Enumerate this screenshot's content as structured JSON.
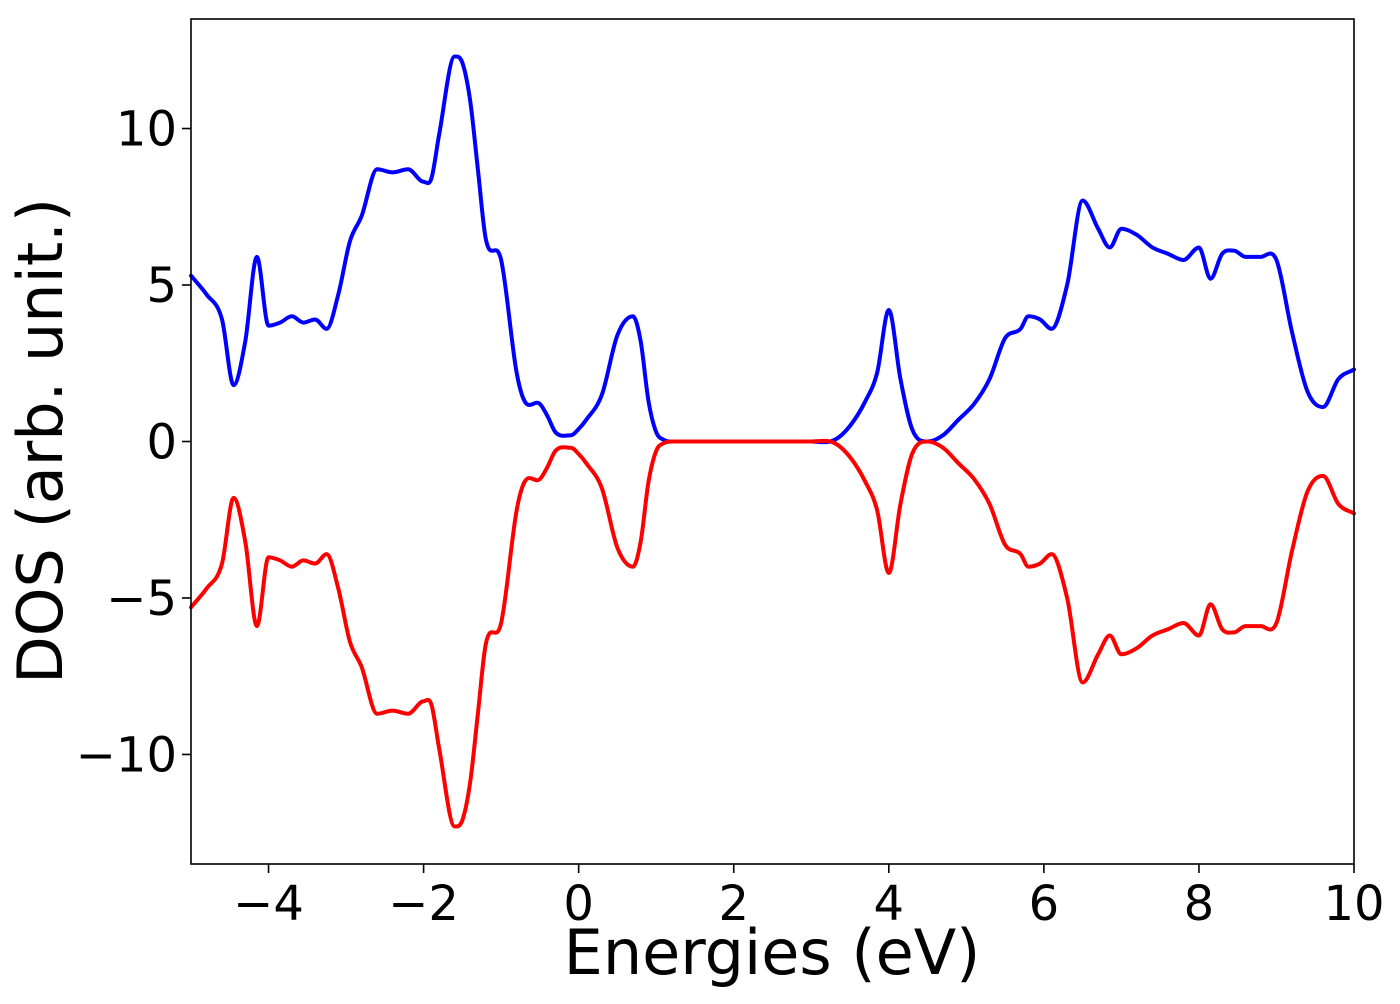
{
  "chart_data": {
    "type": "line",
    "xlabel": "Energies (eV)",
    "ylabel": "DOS (arb. unit.)",
    "xlim": [
      -5,
      10
    ],
    "ylim": [
      -13.5,
      13.5
    ],
    "grid": false,
    "xticks": [
      -4,
      -2,
      0,
      2,
      4,
      6,
      8,
      10
    ],
    "xtick_labels": [
      "−4",
      "−2",
      "0",
      "2",
      "4",
      "6",
      "8",
      "10"
    ],
    "yticks": [
      -10,
      -5,
      0,
      5,
      10
    ],
    "ytick_labels": [
      "−10",
      "−5",
      "0",
      "5",
      "10"
    ],
    "series": [
      {
        "color": "#0000ff",
        "x": [
          -5.0,
          -4.8,
          -4.6,
          -4.45,
          -4.3,
          -4.15,
          -4.0,
          -3.85,
          -3.7,
          -3.55,
          -3.4,
          -3.25,
          -3.1,
          -2.95,
          -2.8,
          -2.6,
          -2.4,
          -2.2,
          -2.0,
          -1.9,
          -1.8,
          -1.6,
          -1.5,
          -1.4,
          -1.3,
          -1.2,
          -1.0,
          -0.8,
          -0.7,
          -0.5,
          -0.4,
          -0.3,
          -0.1,
          0.0,
          0.1,
          0.3,
          0.5,
          0.7,
          0.8,
          0.9,
          1.0,
          1.1,
          1.2,
          1.3,
          1.5,
          2.0,
          2.5,
          3.0,
          3.3,
          3.5,
          3.7,
          3.85,
          4.0,
          4.15,
          4.3,
          4.5,
          4.7,
          4.9,
          5.1,
          5.3,
          5.5,
          5.7,
          5.8,
          5.95,
          6.1,
          6.3,
          6.5,
          6.7,
          6.85,
          7.0,
          7.2,
          7.4,
          7.6,
          7.8,
          8.0,
          8.15,
          8.3,
          8.45,
          8.6,
          8.8,
          9.0,
          9.2,
          9.4,
          9.6,
          9.8,
          10.0
        ],
        "values": [
          5.3,
          4.7,
          3.9,
          1.8,
          3.2,
          5.9,
          3.7,
          3.8,
          4.0,
          3.8,
          3.9,
          3.6,
          4.7,
          6.4,
          7.2,
          8.7,
          8.6,
          8.7,
          8.3,
          8.4,
          9.8,
          12.3,
          12.1,
          10.9,
          8.7,
          6.5,
          5.8,
          2.2,
          1.3,
          1.2,
          0.8,
          0.3,
          0.2,
          0.4,
          0.7,
          1.5,
          3.4,
          4.0,
          3.2,
          1.3,
          0.3,
          0.05,
          0.0,
          0.0,
          0.0,
          0.0,
          0.0,
          0.0,
          0.05,
          0.5,
          1.3,
          2.2,
          4.2,
          2.0,
          0.4,
          0.0,
          0.2,
          0.7,
          1.2,
          2.0,
          3.3,
          3.6,
          4.0,
          3.9,
          3.6,
          5.0,
          7.7,
          6.8,
          6.2,
          6.8,
          6.6,
          6.2,
          6.0,
          5.8,
          6.2,
          5.2,
          6.0,
          6.1,
          5.9,
          5.9,
          5.8,
          3.5,
          1.6,
          1.1,
          2.0,
          2.3
        ]
      },
      {
        "color": "#ff0000",
        "x": [
          -5.0,
          -4.8,
          -4.6,
          -4.45,
          -4.3,
          -4.15,
          -4.0,
          -3.85,
          -3.7,
          -3.55,
          -3.4,
          -3.25,
          -3.1,
          -2.95,
          -2.8,
          -2.6,
          -2.4,
          -2.2,
          -2.0,
          -1.9,
          -1.8,
          -1.6,
          -1.5,
          -1.4,
          -1.3,
          -1.2,
          -1.0,
          -0.8,
          -0.7,
          -0.5,
          -0.4,
          -0.3,
          -0.1,
          0.0,
          0.1,
          0.3,
          0.5,
          0.7,
          0.8,
          0.9,
          1.0,
          1.1,
          1.2,
          1.3,
          1.5,
          2.0,
          2.5,
          3.0,
          3.3,
          3.5,
          3.7,
          3.85,
          4.0,
          4.15,
          4.3,
          4.5,
          4.7,
          4.9,
          5.1,
          5.3,
          5.5,
          5.7,
          5.8,
          5.95,
          6.1,
          6.3,
          6.5,
          6.7,
          6.85,
          7.0,
          7.2,
          7.4,
          7.6,
          7.8,
          8.0,
          8.15,
          8.3,
          8.45,
          8.6,
          8.8,
          9.0,
          9.2,
          9.4,
          9.6,
          9.8,
          10.0
        ],
        "values": [
          -5.3,
          -4.7,
          -3.9,
          -1.8,
          -3.2,
          -5.9,
          -3.7,
          -3.8,
          -4.0,
          -3.8,
          -3.9,
          -3.6,
          -4.7,
          -6.4,
          -7.2,
          -8.7,
          -8.6,
          -8.7,
          -8.3,
          -8.4,
          -9.8,
          -12.3,
          -12.1,
          -10.9,
          -8.7,
          -6.5,
          -5.8,
          -2.2,
          -1.3,
          -1.2,
          -0.8,
          -0.3,
          -0.2,
          -0.4,
          -0.7,
          -1.5,
          -3.4,
          -4.0,
          -3.2,
          -1.3,
          -0.3,
          -0.05,
          0.0,
          0.0,
          0.0,
          0.0,
          0.0,
          0.0,
          -0.05,
          -0.5,
          -1.3,
          -2.2,
          -4.2,
          -2.0,
          -0.4,
          0.0,
          -0.2,
          -0.7,
          -1.2,
          -2.0,
          -3.3,
          -3.6,
          -4.0,
          -3.9,
          -3.6,
          -5.0,
          -7.7,
          -6.8,
          -6.2,
          -6.8,
          -6.6,
          -6.2,
          -6.0,
          -5.8,
          -6.2,
          -5.2,
          -6.0,
          -6.1,
          -5.9,
          -5.9,
          -5.8,
          -3.5,
          -1.6,
          -1.1,
          -2.0,
          -2.3
        ]
      }
    ]
  }
}
